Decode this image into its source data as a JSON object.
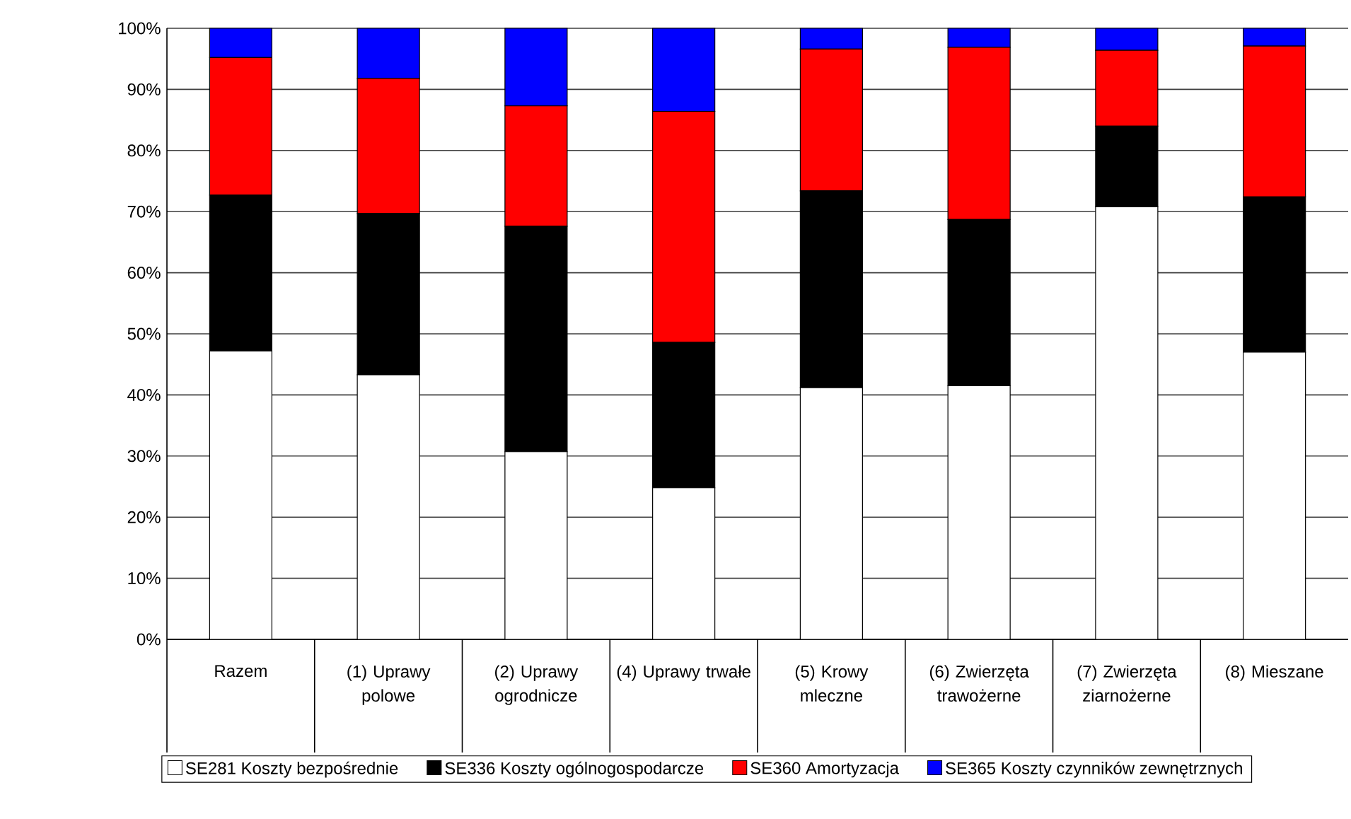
{
  "chart_data": {
    "type": "bar",
    "stacked": true,
    "categories": [
      "Razem",
      "(1) Uprawy polowe",
      "(2) Uprawy ogrodnicze",
      "(4) Uprawy trwałe",
      "(5) Krowy mleczne",
      "(6) Zwierzęta trawożerne",
      "(7) Zwierzęta ziarnożerne",
      "(8) Mieszane"
    ],
    "series": [
      {
        "name": "SE281 Koszty bezpośrednie",
        "color": "#ffffff",
        "values": [
          47.2,
          43.3,
          30.7,
          24.8,
          41.2,
          41.5,
          70.8,
          47.0
        ]
      },
      {
        "name": "SE336 Koszty ogólnogospodarcze",
        "color": "#000000",
        "values": [
          25.5,
          26.4,
          36.9,
          23.8,
          32.2,
          27.2,
          13.2,
          25.4
        ]
      },
      {
        "name": "SE360 Amortyzacja",
        "color": "#ff0000",
        "values": [
          22.5,
          22.1,
          19.7,
          37.8,
          23.2,
          28.2,
          12.4,
          24.7
        ]
      },
      {
        "name": "SE365 Koszty czynników zewnętrznych",
        "color": "#0000ff",
        "values": [
          4.8,
          8.2,
          12.7,
          13.6,
          3.4,
          3.1,
          3.6,
          2.9
        ]
      }
    ],
    "ylim": [
      0,
      100
    ],
    "yticks": [
      {
        "value": 0,
        "label": "0%"
      },
      {
        "value": 10,
        "label": "10%"
      },
      {
        "value": 20,
        "label": "20%"
      },
      {
        "value": 30,
        "label": "30%"
      },
      {
        "value": 40,
        "label": "40%"
      },
      {
        "value": 50,
        "label": "50%"
      },
      {
        "value": 60,
        "label": "60%"
      },
      {
        "value": 70,
        "label": "70%"
      },
      {
        "value": 80,
        "label": "80%"
      },
      {
        "value": 90,
        "label": "90%"
      },
      {
        "value": 100,
        "label": "100%"
      }
    ],
    "grid": "y",
    "legend": "bottom"
  }
}
